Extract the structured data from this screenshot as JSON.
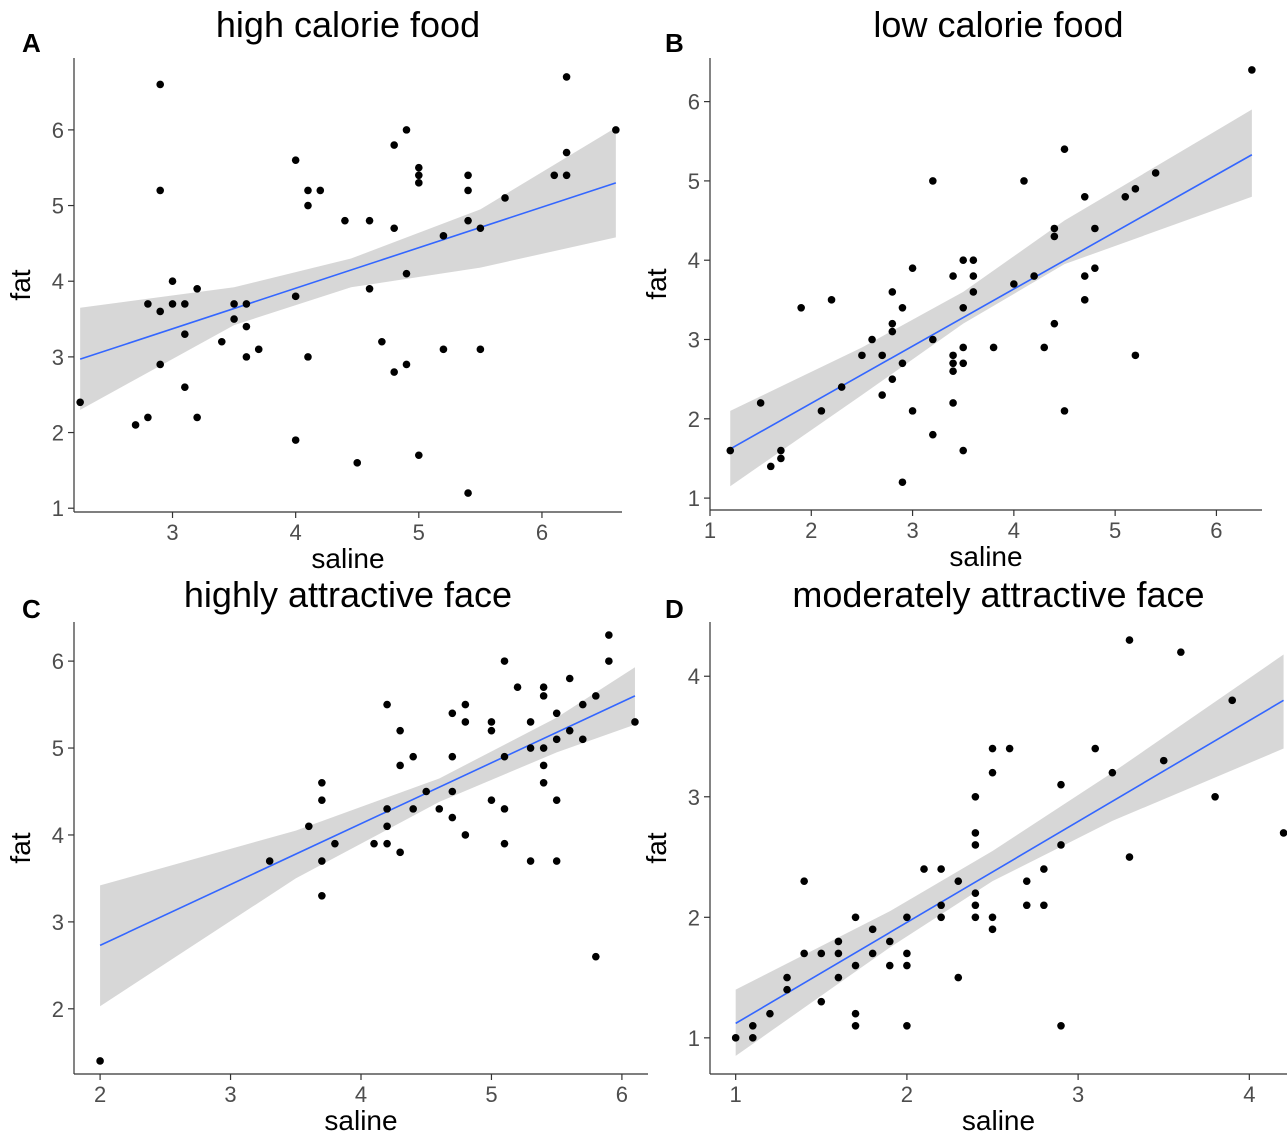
{
  "colors": {
    "point": "#000000",
    "line": "#3366FF",
    "band": "#d3d3d3",
    "axis": "#333333",
    "ticklabel": "#4d4d4d"
  },
  "chart_data": [
    {
      "type": "scatter",
      "panel": "A",
      "title": "high calorie food",
      "xlabel": "saline",
      "ylabel": "fat",
      "xlim": [
        2.2,
        6.65
      ],
      "ylim": [
        0.95,
        6.95
      ],
      "xticks": [
        3,
        4,
        5,
        6
      ],
      "yticks": [
        1,
        2,
        3,
        4,
        5,
        6
      ],
      "grid": false,
      "fit": {
        "x": [
          2.25,
          6.6
        ],
        "y": [
          2.97,
          5.3
        ]
      },
      "band": {
        "x": [
          2.25,
          3.5,
          4.45,
          5.5,
          6.6
        ],
        "lower": [
          2.3,
          3.42,
          3.92,
          4.18,
          4.58
        ],
        "upper": [
          3.65,
          3.92,
          4.3,
          4.95,
          6.03
        ]
      },
      "points": [
        [
          2.25,
          2.4
        ],
        [
          2.7,
          2.1
        ],
        [
          2.8,
          2.2
        ],
        [
          2.8,
          3.7
        ],
        [
          2.9,
          3.6
        ],
        [
          2.9,
          2.9
        ],
        [
          2.9,
          5.2
        ],
        [
          2.9,
          6.6
        ],
        [
          3.0,
          3.7
        ],
        [
          3.0,
          4.0
        ],
        [
          3.1,
          3.7
        ],
        [
          3.1,
          3.3
        ],
        [
          3.1,
          2.6
        ],
        [
          3.2,
          3.9
        ],
        [
          3.2,
          2.2
        ],
        [
          3.4,
          3.2
        ],
        [
          3.5,
          3.7
        ],
        [
          3.5,
          3.5
        ],
        [
          3.6,
          3.7
        ],
        [
          3.6,
          3.4
        ],
        [
          3.6,
          3.0
        ],
        [
          3.7,
          3.1
        ],
        [
          4.0,
          5.6
        ],
        [
          4.0,
          3.8
        ],
        [
          4.0,
          1.9
        ],
        [
          4.1,
          5.2
        ],
        [
          4.1,
          5.0
        ],
        [
          4.1,
          3.0
        ],
        [
          4.2,
          5.2
        ],
        [
          4.4,
          4.8
        ],
        [
          4.5,
          1.6
        ],
        [
          4.6,
          4.8
        ],
        [
          4.6,
          3.9
        ],
        [
          4.7,
          3.2
        ],
        [
          4.8,
          5.8
        ],
        [
          4.8,
          4.7
        ],
        [
          4.8,
          2.8
        ],
        [
          4.9,
          6.0
        ],
        [
          4.9,
          4.1
        ],
        [
          4.9,
          2.9
        ],
        [
          5.0,
          5.5
        ],
        [
          5.0,
          5.4
        ],
        [
          5.0,
          5.3
        ],
        [
          5.0,
          1.7
        ],
        [
          5.2,
          4.6
        ],
        [
          5.2,
          3.1
        ],
        [
          5.4,
          5.4
        ],
        [
          5.4,
          5.2
        ],
        [
          5.4,
          4.8
        ],
        [
          5.4,
          1.2
        ],
        [
          5.5,
          4.7
        ],
        [
          5.5,
          3.1
        ],
        [
          5.7,
          5.1
        ],
        [
          6.1,
          5.4
        ],
        [
          6.2,
          6.7
        ],
        [
          6.2,
          5.7
        ],
        [
          6.2,
          5.4
        ],
        [
          6.6,
          6.0
        ]
      ]
    },
    {
      "type": "scatter",
      "panel": "B",
      "title": "low calorie food",
      "xlabel": "saline",
      "ylabel": "fat",
      "xlim": [
        1.0,
        6.45
      ],
      "ylim": [
        0.85,
        6.55
      ],
      "xticks": [
        1,
        2,
        3,
        4,
        5,
        6
      ],
      "yticks": [
        1,
        2,
        3,
        4,
        5,
        6
      ],
      "grid": false,
      "fit": {
        "x": [
          1.2,
          6.35
        ],
        "y": [
          1.62,
          5.33
        ]
      },
      "band": {
        "x": [
          1.2,
          2.5,
          3.5,
          4.5,
          6.35
        ],
        "lower": [
          1.15,
          2.3,
          3.2,
          3.95,
          4.8
        ],
        "upper": [
          2.1,
          2.9,
          3.6,
          4.5,
          5.9
        ]
      },
      "points": [
        [
          1.2,
          1.6
        ],
        [
          1.5,
          2.2
        ],
        [
          1.6,
          1.4
        ],
        [
          1.7,
          1.5
        ],
        [
          1.7,
          1.6
        ],
        [
          1.9,
          3.4
        ],
        [
          2.1,
          2.1
        ],
        [
          2.2,
          3.5
        ],
        [
          2.3,
          2.4
        ],
        [
          2.5,
          2.8
        ],
        [
          2.6,
          3.0
        ],
        [
          2.7,
          2.8
        ],
        [
          2.7,
          2.3
        ],
        [
          2.8,
          3.6
        ],
        [
          2.8,
          3.2
        ],
        [
          2.8,
          3.1
        ],
        [
          2.8,
          2.5
        ],
        [
          2.9,
          2.7
        ],
        [
          2.9,
          1.2
        ],
        [
          2.9,
          3.4
        ],
        [
          3.0,
          3.9
        ],
        [
          3.0,
          2.1
        ],
        [
          3.2,
          5.0
        ],
        [
          3.2,
          3.0
        ],
        [
          3.2,
          1.8
        ],
        [
          3.4,
          3.8
        ],
        [
          3.4,
          2.8
        ],
        [
          3.4,
          2.7
        ],
        [
          3.4,
          2.6
        ],
        [
          3.4,
          2.2
        ],
        [
          3.5,
          4.0
        ],
        [
          3.5,
          3.4
        ],
        [
          3.5,
          2.9
        ],
        [
          3.5,
          2.7
        ],
        [
          3.5,
          1.6
        ],
        [
          3.6,
          4.0
        ],
        [
          3.6,
          3.8
        ],
        [
          3.6,
          3.6
        ],
        [
          3.8,
          2.9
        ],
        [
          4.0,
          3.7
        ],
        [
          4.1,
          5.0
        ],
        [
          4.2,
          3.8
        ],
        [
          4.3,
          2.9
        ],
        [
          4.4,
          4.4
        ],
        [
          4.4,
          4.3
        ],
        [
          4.4,
          3.2
        ],
        [
          4.5,
          5.4
        ],
        [
          4.5,
          2.1
        ],
        [
          4.7,
          4.8
        ],
        [
          4.7,
          3.8
        ],
        [
          4.7,
          3.5
        ],
        [
          4.8,
          4.4
        ],
        [
          4.8,
          3.9
        ],
        [
          5.1,
          4.8
        ],
        [
          5.2,
          4.9
        ],
        [
          5.2,
          2.8
        ],
        [
          5.4,
          5.1
        ],
        [
          6.35,
          6.4
        ]
      ]
    },
    {
      "type": "scatter",
      "panel": "C",
      "title": "highly attractive face",
      "xlabel": "saline",
      "ylabel": "fat",
      "xlim": [
        1.8,
        6.2
      ],
      "ylim": [
        1.25,
        6.45
      ],
      "xticks": [
        2,
        3,
        4,
        5,
        6
      ],
      "yticks": [
        2,
        3,
        4,
        5,
        6
      ],
      "grid": false,
      "fit": {
        "x": [
          2.0,
          6.1
        ],
        "y": [
          2.73,
          5.6
        ]
      },
      "band": {
        "x": [
          2.0,
          3.5,
          4.6,
          5.5,
          6.1
        ],
        "lower": [
          2.03,
          3.5,
          4.38,
          4.95,
          5.27
        ],
        "upper": [
          3.42,
          4.05,
          4.65,
          5.35,
          5.93
        ]
      },
      "points": [
        [
          2.0,
          1.4
        ],
        [
          3.3,
          3.7
        ],
        [
          3.6,
          4.1
        ],
        [
          3.7,
          4.6
        ],
        [
          3.7,
          4.4
        ],
        [
          3.7,
          3.7
        ],
        [
          3.7,
          3.3
        ],
        [
          3.8,
          3.9
        ],
        [
          4.1,
          3.9
        ],
        [
          4.2,
          5.5
        ],
        [
          4.2,
          4.3
        ],
        [
          4.2,
          4.1
        ],
        [
          4.2,
          3.9
        ],
        [
          4.3,
          5.2
        ],
        [
          4.3,
          4.8
        ],
        [
          4.3,
          3.8
        ],
        [
          4.4,
          4.9
        ],
        [
          4.4,
          4.3
        ],
        [
          4.5,
          4.5
        ],
        [
          4.6,
          4.3
        ],
        [
          4.7,
          5.4
        ],
        [
          4.7,
          4.9
        ],
        [
          4.7,
          4.5
        ],
        [
          4.7,
          4.2
        ],
        [
          4.8,
          5.5
        ],
        [
          4.8,
          5.3
        ],
        [
          4.8,
          4.0
        ],
        [
          5.0,
          5.3
        ],
        [
          5.0,
          5.2
        ],
        [
          5.0,
          4.4
        ],
        [
          5.1,
          6.0
        ],
        [
          5.1,
          4.9
        ],
        [
          5.1,
          4.3
        ],
        [
          5.1,
          3.9
        ],
        [
          5.2,
          5.7
        ],
        [
          5.3,
          5.3
        ],
        [
          5.3,
          5.0
        ],
        [
          5.3,
          3.7
        ],
        [
          5.4,
          5.7
        ],
        [
          5.4,
          5.6
        ],
        [
          5.4,
          5.0
        ],
        [
          5.4,
          4.8
        ],
        [
          5.4,
          4.6
        ],
        [
          5.5,
          5.4
        ],
        [
          5.5,
          5.1
        ],
        [
          5.5,
          4.4
        ],
        [
          5.5,
          3.7
        ],
        [
          5.6,
          5.8
        ],
        [
          5.6,
          5.2
        ],
        [
          5.7,
          5.5
        ],
        [
          5.7,
          5.1
        ],
        [
          5.8,
          5.6
        ],
        [
          5.8,
          2.6
        ],
        [
          5.9,
          6.3
        ],
        [
          5.9,
          6.0
        ],
        [
          6.1,
          5.3
        ]
      ]
    },
    {
      "type": "scatter",
      "panel": "D",
      "title": "moderately attractive face",
      "xlabel": "saline",
      "ylabel": "fat",
      "xlim": [
        0.85,
        4.22
      ],
      "ylim": [
        0.7,
        4.45
      ],
      "xticks": [
        1,
        2,
        3,
        4
      ],
      "yticks": [
        1,
        2,
        3,
        4
      ],
      "grid": false,
      "fit": {
        "x": [
          1.0,
          4.2
        ],
        "y": [
          1.12,
          3.8
        ]
      },
      "band": {
        "x": [
          1.0,
          1.9,
          2.5,
          3.2,
          4.2
        ],
        "lower": [
          0.85,
          1.75,
          2.3,
          2.8,
          3.4
        ],
        "upper": [
          1.4,
          2.05,
          2.55,
          3.2,
          4.18
        ]
      },
      "points": [
        [
          1.0,
          1.0
        ],
        [
          1.1,
          1.0
        ],
        [
          1.1,
          1.1
        ],
        [
          1.2,
          1.2
        ],
        [
          1.3,
          1.5
        ],
        [
          1.3,
          1.4
        ],
        [
          1.4,
          2.3
        ],
        [
          1.4,
          1.7
        ],
        [
          1.5,
          1.7
        ],
        [
          1.5,
          1.3
        ],
        [
          1.6,
          1.8
        ],
        [
          1.6,
          1.7
        ],
        [
          1.6,
          1.5
        ],
        [
          1.7,
          2.0
        ],
        [
          1.7,
          1.6
        ],
        [
          1.7,
          1.2
        ],
        [
          1.7,
          1.1
        ],
        [
          1.8,
          1.9
        ],
        [
          1.8,
          1.7
        ],
        [
          1.9,
          1.8
        ],
        [
          1.9,
          1.6
        ],
        [
          2.0,
          2.0
        ],
        [
          2.0,
          1.7
        ],
        [
          2.0,
          1.6
        ],
        [
          2.0,
          1.1
        ],
        [
          2.1,
          2.4
        ],
        [
          2.2,
          2.4
        ],
        [
          2.2,
          2.1
        ],
        [
          2.2,
          2.0
        ],
        [
          2.3,
          2.3
        ],
        [
          2.3,
          1.5
        ],
        [
          2.4,
          3.0
        ],
        [
          2.4,
          2.7
        ],
        [
          2.4,
          2.6
        ],
        [
          2.4,
          2.2
        ],
        [
          2.4,
          2.1
        ],
        [
          2.4,
          2.0
        ],
        [
          2.5,
          3.4
        ],
        [
          2.5,
          3.2
        ],
        [
          2.5,
          2.0
        ],
        [
          2.5,
          1.9
        ],
        [
          2.6,
          3.4
        ],
        [
          2.7,
          2.3
        ],
        [
          2.7,
          2.1
        ],
        [
          2.8,
          2.4
        ],
        [
          2.8,
          2.1
        ],
        [
          2.9,
          3.1
        ],
        [
          2.9,
          2.6
        ],
        [
          2.9,
          1.1
        ],
        [
          3.1,
          3.4
        ],
        [
          3.2,
          3.2
        ],
        [
          3.3,
          4.3
        ],
        [
          3.3,
          2.5
        ],
        [
          3.5,
          3.3
        ],
        [
          3.6,
          4.2
        ],
        [
          3.8,
          3.0
        ],
        [
          3.9,
          3.8
        ],
        [
          4.2,
          2.7
        ]
      ]
    }
  ]
}
